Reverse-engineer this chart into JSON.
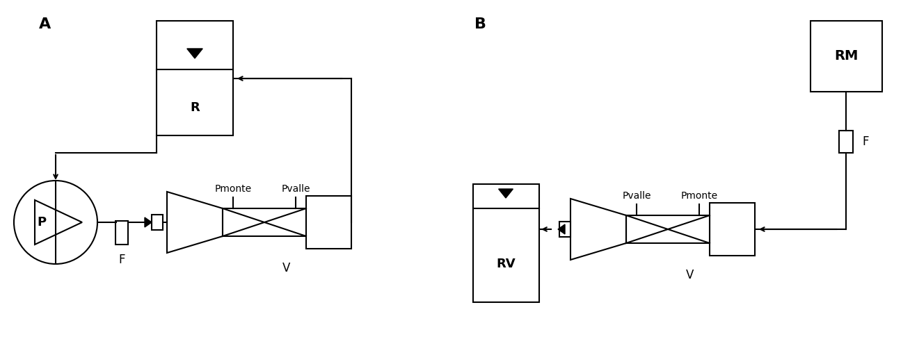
{
  "bg_color": "#ffffff",
  "line_color": "#000000",
  "label_A": "A",
  "label_B": "B",
  "label_R": "R",
  "label_P": "P",
  "label_F_A": "F",
  "label_V_A": "V",
  "label_Pmonte_A": "Pmonte",
  "label_Pvalle_A": "Pvalle",
  "label_RV": "RV",
  "label_V_B": "V",
  "label_Pvalle_B": "Pvalle",
  "label_Pmonte_B": "Pmonte",
  "label_F_B": "F",
  "label_RM": "RM",
  "fontsize_letters": 16,
  "fontsize_labels": 10,
  "fontsize_component": 12
}
